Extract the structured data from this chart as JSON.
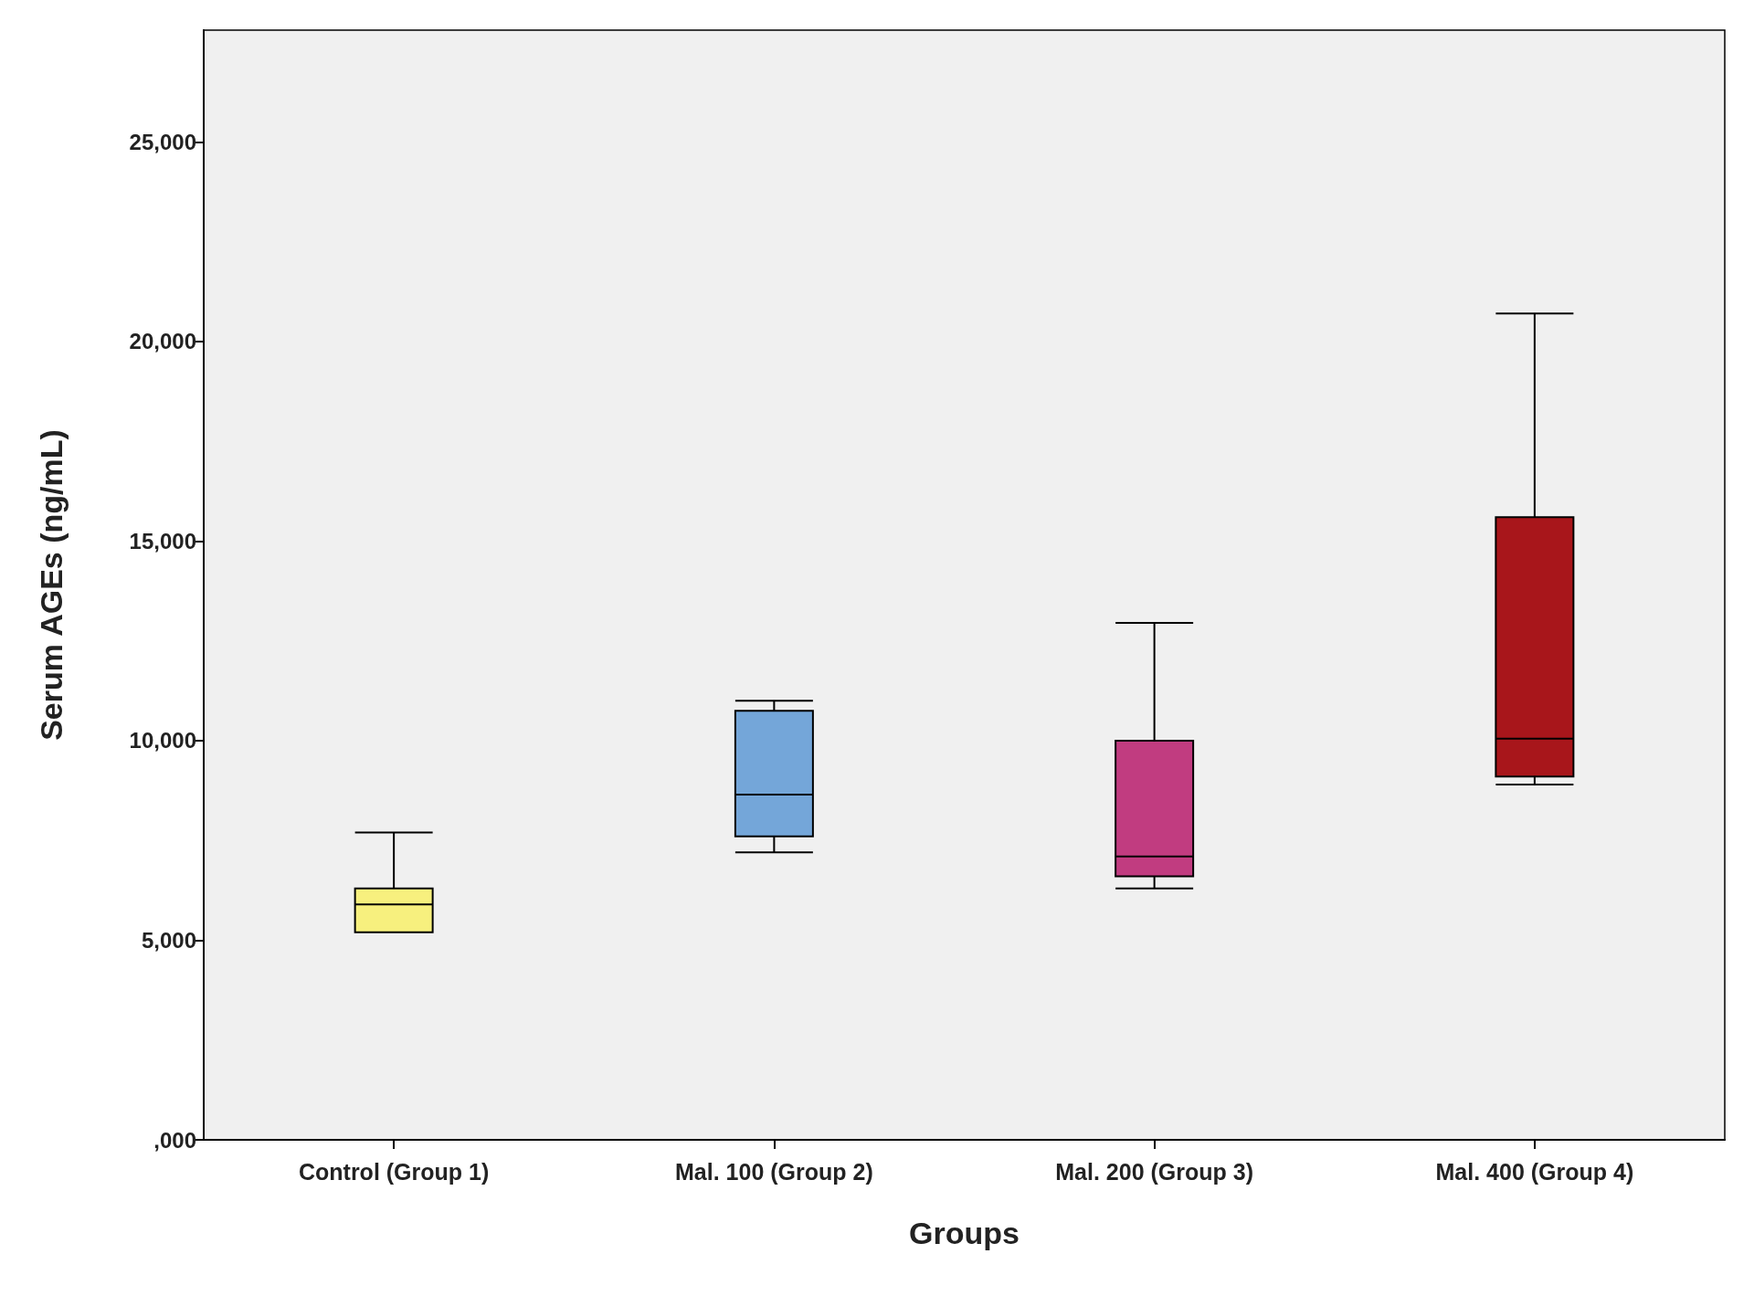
{
  "chart_data": {
    "type": "box",
    "xlabel": "Groups",
    "ylabel": "Serum AGEs (ng/mL)",
    "categories": [
      "Control (Group 1)",
      "Mal. 100 (Group 2)",
      "Mal. 200 (Group 3)",
      "Mal. 400 (Group 4)"
    ],
    "boxes": [
      {
        "low": 5200,
        "q1": 5200,
        "median": 5900,
        "q3": 6300,
        "high": 7700
      },
      {
        "low": 7200,
        "q1": 7600,
        "median": 8650,
        "q3": 10750,
        "high": 11000
      },
      {
        "low": 6300,
        "q1": 6600,
        "median": 7100,
        "q3": 10000,
        "high": 12950
      },
      {
        "low": 8900,
        "q1": 9100,
        "median": 10050,
        "q3": 15600,
        "high": 20700
      }
    ],
    "colors": [
      "#f7f07e",
      "#74a6d9",
      "#c13c80",
      "#a8161b"
    ],
    "ylim": [
      0,
      27800
    ],
    "yticks": [
      {
        "value": 0,
        "label": ",000"
      },
      {
        "value": 5000,
        "label": "5,000"
      },
      {
        "value": 10000,
        "label": "10,000"
      },
      {
        "value": 15000,
        "label": "15,000"
      },
      {
        "value": 20000,
        "label": "20,000"
      },
      {
        "value": 25000,
        "label": "25,000"
      }
    ],
    "grid": false
  }
}
